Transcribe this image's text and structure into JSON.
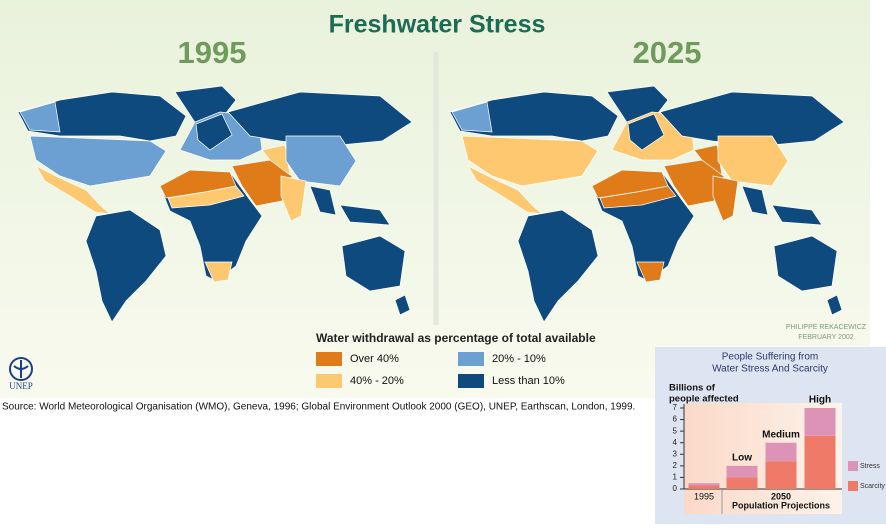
{
  "header": {
    "title": "Freshwater Stress"
  },
  "maps": [
    {
      "year": "1995"
    },
    {
      "year": "2025"
    }
  ],
  "legend": {
    "title": "Water withdrawal as percentage of total available",
    "items": [
      {
        "label": "Over 40%",
        "color": "#e07b1a"
      },
      {
        "label": "40% - 20%",
        "color": "#fdc870"
      },
      {
        "label": "20% - 10%",
        "color": "#6c9fd2"
      },
      {
        "label": "Less than 10%",
        "color": "#0e4a7e"
      }
    ]
  },
  "credit": [
    "PHILIPPE REKACEWICZ",
    "FEBRUARY 2002"
  ],
  "logo": "UNEP",
  "source": "Source: World Meteorological Organisation (WMO), Geneva, 1996; Global Environment Outlook 2000 (GEO), UNEP, Earthscan, London, 1999.",
  "chart_data": {
    "type": "bar",
    "title": [
      "People Suffering from",
      "Water Stress And Scarcity"
    ],
    "ylabel": [
      "Billions of",
      "people affected"
    ],
    "categories": [
      "1995",
      "Low",
      "Medium",
      "High"
    ],
    "group_label": "2050",
    "xlabel": "Population Projections",
    "series": [
      {
        "name": "Scarcity",
        "color": "#f07a68",
        "values": [
          0.3,
          1.0,
          2.4,
          4.6
        ]
      },
      {
        "name": "Stress",
        "color": "#dc93b6",
        "values": [
          0.2,
          1.0,
          1.6,
          2.4
        ]
      }
    ],
    "stacked": true,
    "ylim": [
      0,
      7
    ],
    "yticks": [
      0,
      1,
      2,
      3,
      4,
      5,
      6,
      7
    ]
  }
}
